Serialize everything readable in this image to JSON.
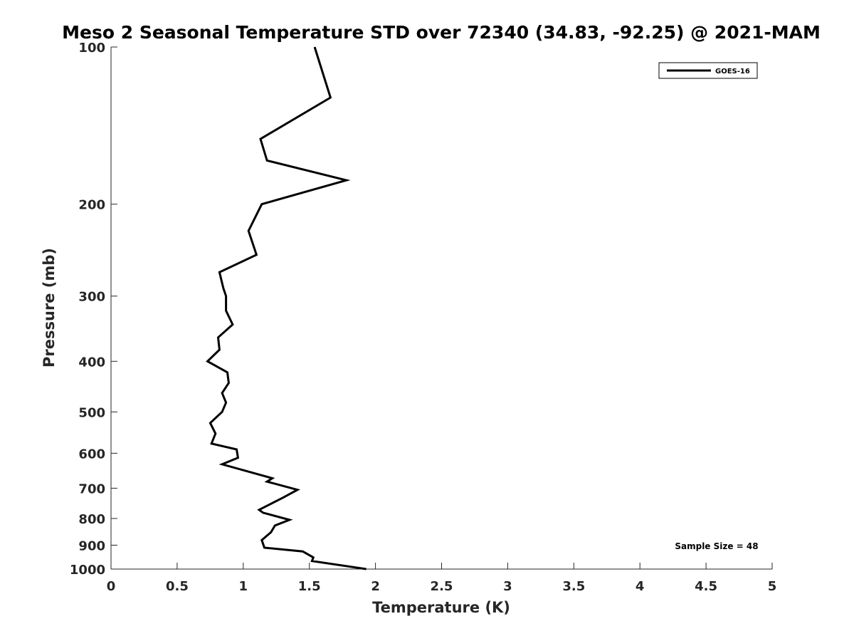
{
  "chart_data": {
    "type": "line",
    "title": "Meso 2 Seasonal Temperature STD over 72340 (34.83, -92.25) @ 2021-MAM",
    "xlabel": "Temperature (K)",
    "ylabel": "Pressure (mb)",
    "xlim": [
      0,
      5
    ],
    "ylim": [
      100,
      1000
    ],
    "y_scale": "log",
    "y_reversed": true,
    "grid": false,
    "legend_position": "top-right",
    "x_ticks": [
      "0",
      "0.5",
      "1",
      "1.5",
      "2",
      "2.5",
      "3",
      "3.5",
      "4",
      "4.5",
      "5"
    ],
    "y_ticks": [
      "100",
      "200",
      "300",
      "400",
      "500",
      "600",
      "700",
      "800",
      "900",
      "1000"
    ],
    "series": [
      {
        "name": "GOES-16",
        "color": "#000000",
        "points": [
          [
            1.54,
            100
          ],
          [
            1.66,
            125
          ],
          [
            1.13,
            150
          ],
          [
            1.18,
            165
          ],
          [
            1.78,
            180
          ],
          [
            1.14,
            200
          ],
          [
            1.04,
            225
          ],
          [
            1.1,
            250
          ],
          [
            0.82,
            270
          ],
          [
            0.85,
            290
          ],
          [
            0.87,
            300
          ],
          [
            0.87,
            320
          ],
          [
            0.92,
            340
          ],
          [
            0.81,
            360
          ],
          [
            0.82,
            380
          ],
          [
            0.73,
            400
          ],
          [
            0.88,
            420
          ],
          [
            0.89,
            440
          ],
          [
            0.84,
            460
          ],
          [
            0.87,
            480
          ],
          [
            0.84,
            500
          ],
          [
            0.75,
            525
          ],
          [
            0.79,
            550
          ],
          [
            0.76,
            575
          ],
          [
            0.95,
            590
          ],
          [
            0.96,
            612
          ],
          [
            0.84,
            630
          ],
          [
            1.22,
            670
          ],
          [
            1.18,
            680
          ],
          [
            1.41,
            705
          ],
          [
            1.3,
            730
          ],
          [
            1.12,
            770
          ],
          [
            1.15,
            780
          ],
          [
            1.35,
            805
          ],
          [
            1.24,
            825
          ],
          [
            1.21,
            850
          ],
          [
            1.14,
            880
          ],
          [
            1.16,
            910
          ],
          [
            1.45,
            925
          ],
          [
            1.53,
            950
          ],
          [
            1.52,
            965
          ],
          [
            1.93,
            1000
          ]
        ]
      }
    ],
    "annotations": [
      "Sample Size = 48"
    ]
  }
}
